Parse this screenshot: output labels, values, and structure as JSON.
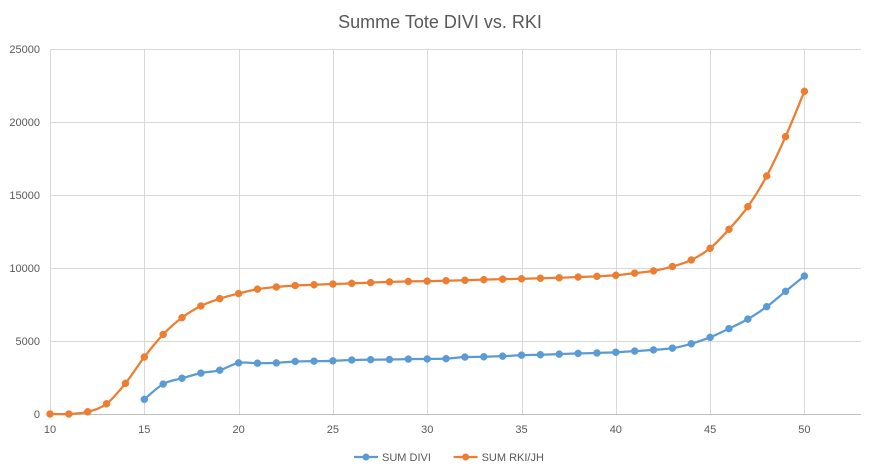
{
  "chart_data": {
    "type": "line",
    "title": "Summe Tote DIVI vs. RKI",
    "xlabel": "",
    "ylabel": "",
    "xlim": [
      10,
      53
    ],
    "ylim": [
      0,
      25000
    ],
    "x_ticks": [
      10,
      15,
      20,
      25,
      30,
      35,
      40,
      45,
      50
    ],
    "y_ticks": [
      0,
      5000,
      10000,
      15000,
      20000,
      25000
    ],
    "grid": true,
    "legend_position": "bottom",
    "series": [
      {
        "name": "SUM DIVI",
        "color": "#5B9BD5",
        "x": [
          15,
          16,
          17,
          18,
          19,
          20,
          21,
          22,
          23,
          24,
          25,
          26,
          27,
          28,
          29,
          30,
          31,
          32,
          33,
          34,
          35,
          36,
          37,
          38,
          39,
          40,
          41,
          42,
          43,
          44,
          45,
          46,
          47,
          48,
          49,
          50
        ],
        "values": [
          1000,
          2050,
          2450,
          2800,
          3000,
          3500,
          3480,
          3500,
          3600,
          3620,
          3640,
          3700,
          3720,
          3730,
          3760,
          3770,
          3790,
          3900,
          3920,
          3960,
          4030,
          4060,
          4100,
          4150,
          4180,
          4230,
          4310,
          4390,
          4510,
          4810,
          5250,
          5850,
          6500,
          7350,
          8400,
          9450
        ]
      },
      {
        "name": "SUM RKI/JH",
        "color": "#ED7D31",
        "x": [
          10,
          11,
          12,
          13,
          14,
          15,
          16,
          17,
          18,
          19,
          20,
          21,
          22,
          23,
          24,
          25,
          26,
          27,
          28,
          29,
          30,
          31,
          32,
          33,
          34,
          35,
          36,
          37,
          38,
          39,
          40,
          41,
          42,
          43,
          44,
          45,
          46,
          47,
          48,
          49,
          50
        ],
        "values": [
          0,
          0,
          150,
          700,
          2100,
          3900,
          5450,
          6600,
          7400,
          7900,
          8250,
          8550,
          8700,
          8800,
          8850,
          8900,
          8950,
          9000,
          9050,
          9080,
          9100,
          9130,
          9160,
          9200,
          9240,
          9260,
          9300,
          9330,
          9380,
          9430,
          9500,
          9650,
          9800,
          10100,
          10550,
          11350,
          12650,
          14200,
          16300,
          19000,
          22100
        ]
      }
    ]
  }
}
